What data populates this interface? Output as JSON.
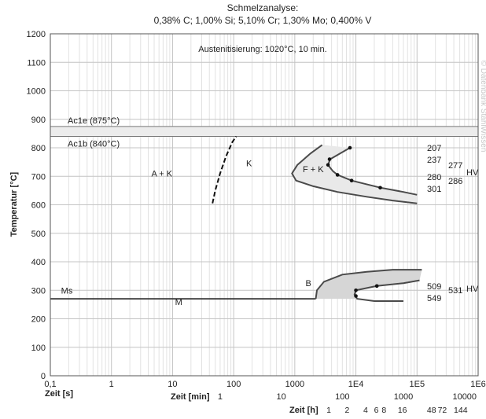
{
  "chart_data": {
    "type": "line",
    "title": "Schmelzanalyse:",
    "subtitle": "0,38% C; 1,00% Si; 5,10% Cr; 1,30% Mo; 0,400% V",
    "annotation": "Austenitisierung: 1020°C, 10 min.",
    "watermark": "© Datenbank StahlWissen",
    "ylabel": "Temperatur [°C]",
    "ylim": [
      0,
      1200
    ],
    "yticks": [
      "0",
      "100",
      "200",
      "300",
      "400",
      "500",
      "600",
      "700",
      "800",
      "900",
      "1000",
      "1100",
      "1200"
    ],
    "x_scale": "log",
    "xlim_seconds": [
      0.1,
      1000000
    ],
    "grid": true,
    "axis_seconds": {
      "label": "Zeit [s]",
      "ticks": [
        {
          "x": 0.1,
          "text": "0,1"
        },
        {
          "x": 1,
          "text": "1"
        },
        {
          "x": 10,
          "text": "10"
        },
        {
          "x": 100,
          "text": "100"
        },
        {
          "x": 1000,
          "text": "1000"
        },
        {
          "x": 10000,
          "text": "1E4"
        },
        {
          "x": 100000,
          "text": "1E5"
        },
        {
          "x": 1000000,
          "text": "1E6"
        }
      ]
    },
    "axis_minutes": {
      "label": "Zeit [min]",
      "ticks": [
        {
          "x": 60,
          "text": "1"
        },
        {
          "x": 600,
          "text": "10"
        },
        {
          "x": 6000,
          "text": "100"
        },
        {
          "x": 60000,
          "text": "1000"
        },
        {
          "x": 600000,
          "text": "10000"
        }
      ]
    },
    "axis_hours": {
      "label": "Zeit [h]",
      "ticks": [
        {
          "x": 3600,
          "text": "1"
        },
        {
          "x": 7200,
          "text": "2"
        },
        {
          "x": 14400,
          "text": "4"
        },
        {
          "x": 21600,
          "text": "6"
        },
        {
          "x": 28800,
          "text": "8"
        },
        {
          "x": 57600,
          "text": "16"
        },
        {
          "x": 172800,
          "text": "48"
        },
        {
          "x": 259200,
          "text": "72"
        },
        {
          "x": 518400,
          "text": "144"
        }
      ]
    },
    "reference_lines": [
      {
        "name": "Ac1e",
        "label": "Ac1e (875°C)",
        "y": 875
      },
      {
        "name": "Ac1b",
        "label": "Ac1b (840°C)",
        "y": 840
      }
    ],
    "curves": [
      {
        "name": "K",
        "style": "dashed",
        "points": [
          [
            45,
            605
          ],
          [
            50,
            650
          ],
          [
            60,
            710
          ],
          [
            75,
            770
          ],
          [
            95,
            820
          ],
          [
            110,
            840
          ]
        ]
      },
      {
        "name": "F-start",
        "style": "solid",
        "points": [
          [
            2800,
            810
          ],
          [
            1800,
            780
          ],
          [
            1100,
            740
          ],
          [
            900,
            710
          ],
          [
            1050,
            685
          ],
          [
            2000,
            665
          ],
          [
            5000,
            645
          ],
          [
            15000,
            628
          ],
          [
            40000,
            615
          ],
          [
            100000,
            605
          ]
        ]
      },
      {
        "name": "F-end",
        "style": "solid",
        "points": [
          [
            8000,
            800
          ],
          [
            5500,
            780
          ],
          [
            3800,
            760
          ],
          [
            3500,
            740
          ],
          [
            4200,
            718
          ],
          [
            5000,
            705
          ],
          [
            8500,
            685
          ],
          [
            25000,
            660
          ],
          [
            60000,
            645
          ],
          [
            100000,
            635
          ]
        ]
      },
      {
        "name": "Ms",
        "style": "solid",
        "points": [
          [
            0.1,
            270
          ],
          [
            2200,
            270
          ]
        ]
      },
      {
        "name": "B-start",
        "style": "solid",
        "points": [
          [
            2200,
            270
          ],
          [
            2300,
            300
          ],
          [
            3000,
            330
          ],
          [
            6000,
            355
          ],
          [
            15000,
            365
          ],
          [
            40000,
            372
          ],
          [
            120000,
            372
          ]
        ]
      },
      {
        "name": "B-end",
        "style": "solid",
        "points": [
          [
            110000,
            335
          ],
          [
            60000,
            325
          ],
          [
            22000,
            315
          ],
          [
            10000,
            300
          ],
          [
            9500,
            285
          ],
          [
            10500,
            270
          ],
          [
            20000,
            262
          ],
          [
            60000,
            262
          ]
        ]
      }
    ],
    "points": [
      {
        "curve": "F-end",
        "x": 8000,
        "y": 800
      },
      {
        "curve": "F-end",
        "x": 3700,
        "y": 760
      },
      {
        "curve": "F-end",
        "x": 3500,
        "y": 740
      },
      {
        "curve": "F-end",
        "x": 5000,
        "y": 705
      },
      {
        "curve": "F-end",
        "x": 8500,
        "y": 685
      },
      {
        "curve": "F-end",
        "x": 25000,
        "y": 660
      },
      {
        "curve": "B-end",
        "x": 10000,
        "y": 300
      },
      {
        "curve": "B-end",
        "x": 22000,
        "y": 315
      },
      {
        "curve": "B-end",
        "x": 10000,
        "y": 280
      }
    ],
    "region_labels": [
      {
        "text": "A + K",
        "x": 4.5,
        "y": 700
      },
      {
        "text": "K",
        "x": 160,
        "y": 735
      },
      {
        "text": "F + K",
        "x": 1350,
        "y": 715
      },
      {
        "text": "B",
        "x": 1500,
        "y": 315
      },
      {
        "text": "Ms",
        "x": 0.15,
        "y": 288
      },
      {
        "text": "M",
        "x": 11,
        "y": 248
      }
    ],
    "hardness": {
      "unit": "HV",
      "ferrite_inner": [
        "207",
        "237",
        "280",
        "301"
      ],
      "ferrite_outer": [
        "277",
        "286"
      ],
      "bainite_inner": [
        "509",
        "549"
      ],
      "bainite_outer": [
        "531"
      ]
    }
  }
}
